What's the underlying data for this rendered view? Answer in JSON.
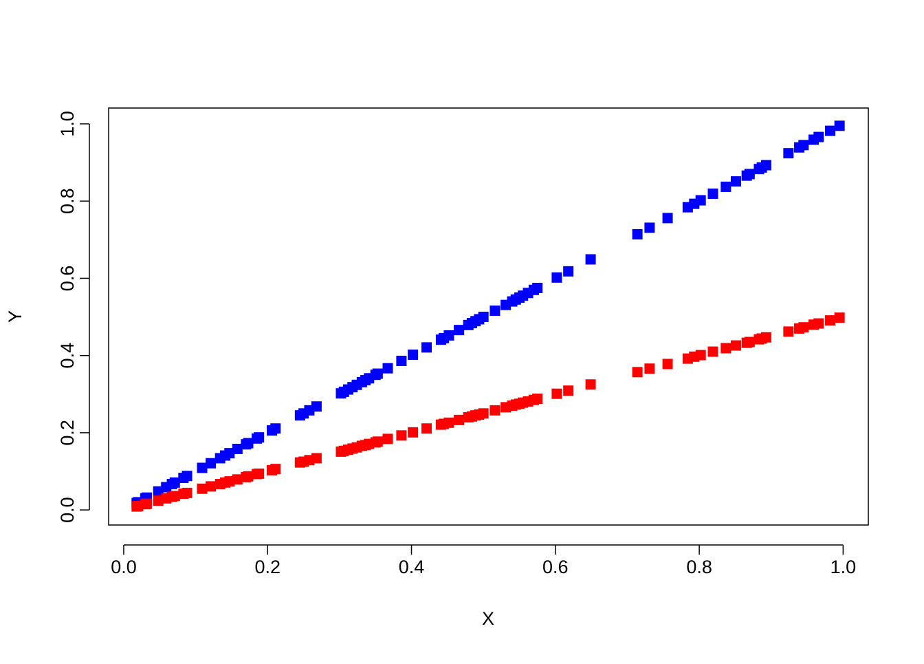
{
  "chart_data": {
    "type": "scatter",
    "x_label": "X",
    "y_label": "Y",
    "x": [
      0.018,
      0.02,
      0.03,
      0.032,
      0.048,
      0.059,
      0.067,
      0.071,
      0.083,
      0.088,
      0.109,
      0.121,
      0.134,
      0.141,
      0.147,
      0.158,
      0.17,
      0.173,
      0.185,
      0.188,
      0.206,
      0.211,
      0.245,
      0.25,
      0.258,
      0.268,
      0.302,
      0.306,
      0.312,
      0.318,
      0.324,
      0.331,
      0.336,
      0.341,
      0.35,
      0.353,
      0.367,
      0.386,
      0.402,
      0.421,
      0.441,
      0.445,
      0.452,
      0.466,
      0.479,
      0.484,
      0.489,
      0.494,
      0.5,
      0.516,
      0.531,
      0.54,
      0.545,
      0.55,
      0.555,
      0.562,
      0.57,
      0.575,
      0.602,
      0.618,
      0.649,
      0.714,
      0.731,
      0.756,
      0.784,
      0.793,
      0.802,
      0.819,
      0.837,
      0.851,
      0.866,
      0.87,
      0.883,
      0.887,
      0.893,
      0.924,
      0.939,
      0.945,
      0.959,
      0.966,
      0.982,
      0.995
    ],
    "series": [
      {
        "color": "#0000ff",
        "values": [
          0.018,
          0.02,
          0.03,
          0.032,
          0.048,
          0.059,
          0.067,
          0.071,
          0.083,
          0.088,
          0.109,
          0.121,
          0.134,
          0.141,
          0.147,
          0.158,
          0.17,
          0.173,
          0.185,
          0.188,
          0.206,
          0.211,
          0.245,
          0.25,
          0.258,
          0.268,
          0.302,
          0.306,
          0.312,
          0.318,
          0.324,
          0.331,
          0.336,
          0.341,
          0.35,
          0.353,
          0.367,
          0.386,
          0.402,
          0.421,
          0.441,
          0.445,
          0.452,
          0.466,
          0.479,
          0.484,
          0.489,
          0.494,
          0.5,
          0.516,
          0.531,
          0.54,
          0.545,
          0.55,
          0.555,
          0.562,
          0.57,
          0.575,
          0.602,
          0.618,
          0.649,
          0.714,
          0.731,
          0.756,
          0.784,
          0.793,
          0.802,
          0.819,
          0.837,
          0.851,
          0.866,
          0.87,
          0.883,
          0.887,
          0.893,
          0.924,
          0.939,
          0.945,
          0.959,
          0.966,
          0.982,
          0.995
        ]
      },
      {
        "color": "#ff0000",
        "values": [
          0.009,
          0.01,
          0.015,
          0.016,
          0.024,
          0.03,
          0.034,
          0.036,
          0.042,
          0.044,
          0.055,
          0.061,
          0.067,
          0.071,
          0.074,
          0.079,
          0.085,
          0.087,
          0.093,
          0.094,
          0.103,
          0.106,
          0.123,
          0.125,
          0.129,
          0.134,
          0.151,
          0.153,
          0.156,
          0.159,
          0.162,
          0.166,
          0.168,
          0.171,
          0.175,
          0.177,
          0.184,
          0.193,
          0.201,
          0.211,
          0.221,
          0.223,
          0.226,
          0.233,
          0.24,
          0.242,
          0.245,
          0.247,
          0.25,
          0.258,
          0.266,
          0.27,
          0.273,
          0.275,
          0.278,
          0.281,
          0.285,
          0.288,
          0.301,
          0.309,
          0.325,
          0.357,
          0.366,
          0.378,
          0.392,
          0.397,
          0.401,
          0.41,
          0.419,
          0.426,
          0.433,
          0.435,
          0.442,
          0.444,
          0.447,
          0.462,
          0.47,
          0.473,
          0.48,
          0.483,
          0.491,
          0.498
        ]
      }
    ],
    "xlim": [
      -0.021,
      1.035
    ],
    "ylim": [
      -0.039,
      1.041
    ],
    "xticks": [
      {
        "value": 0,
        "label": "0.0"
      },
      0.2,
      0.4,
      0.6,
      0.8,
      {
        "value": 1,
        "label": "1.0"
      }
    ],
    "yticks": [
      {
        "value": 0,
        "label": "0.0"
      },
      0.2,
      0.4,
      0.6,
      0.8,
      {
        "value": 1,
        "label": "1.0"
      }
    ],
    "grid": false
  }
}
